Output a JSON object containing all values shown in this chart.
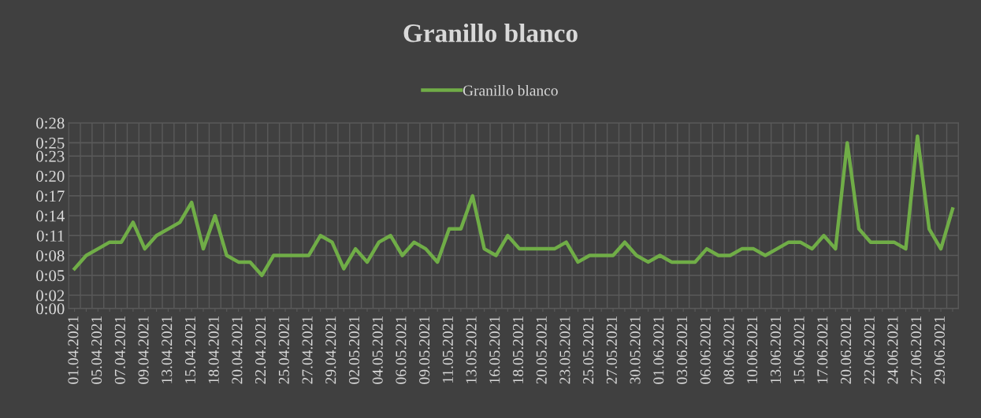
{
  "chart_data": {
    "type": "line",
    "title": "Granillo blanco",
    "categories": [
      "01.04.2021",
      null,
      "05.04.2021",
      null,
      "07.04.2021",
      null,
      "09.04.2021",
      null,
      "13.04.2021",
      null,
      "15.04.2021",
      null,
      "18.04.2021",
      null,
      "20.04.2021",
      null,
      "22.04.2021",
      null,
      "25.04.2021",
      null,
      "27.04.2021",
      null,
      "29.04.2021",
      null,
      "02.05.2021",
      null,
      "04.05.2021",
      null,
      "06.05.2021",
      null,
      "09.05.2021",
      null,
      "11.05.2021",
      null,
      "13.05.2021",
      null,
      "16.05.2021",
      null,
      "18.05.2021",
      null,
      "20.05.2021",
      null,
      "23.05.2021",
      null,
      "25.05.2021",
      null,
      "27.05.2021",
      null,
      "30.05.2021",
      null,
      "01.06.2021",
      null,
      "03.06.2021",
      null,
      "06.06.2021",
      null,
      "08.06.2021",
      null,
      "10.06.2021",
      null,
      "13.06.2021",
      null,
      "15.06.2021",
      null,
      "17.06.2021",
      null,
      "20.06.2021",
      null,
      "22.06.2021",
      null,
      "24.06.2021",
      null,
      "27.06.2021",
      null,
      "29.06.2021",
      null
    ],
    "series": [
      {
        "name": "Granillo blanco",
        "color": "#70ad47",
        "values": [
          6,
          8,
          9,
          10,
          10,
          13,
          9,
          11,
          12,
          13,
          16,
          9,
          14,
          8,
          7,
          7,
          5,
          8,
          8,
          8,
          8,
          11,
          10,
          6,
          9,
          7,
          10,
          11,
          8,
          10,
          9,
          7,
          12,
          12,
          17,
          9,
          8,
          11,
          9,
          9,
          9,
          9,
          10,
          7,
          8,
          8,
          8,
          10,
          8,
          7,
          8,
          7,
          7,
          7,
          9,
          8,
          8,
          9,
          9,
          8,
          9,
          10,
          10,
          9,
          11,
          9,
          25,
          12,
          10,
          10,
          10,
          9,
          26,
          12,
          9,
          15
        ]
      }
    ],
    "ylim": [
      0,
      28
    ],
    "yticks": [
      {
        "value": 0,
        "label": "0:00"
      },
      {
        "value": 2,
        "label": "0:02"
      },
      {
        "value": 5,
        "label": "0:05"
      },
      {
        "value": 8,
        "label": "0:08"
      },
      {
        "value": 11,
        "label": "0:11"
      },
      {
        "value": 14,
        "label": "0:14"
      },
      {
        "value": 17,
        "label": "0:17"
      },
      {
        "value": 20,
        "label": "0:20"
      },
      {
        "value": 23,
        "label": "0:23"
      },
      {
        "value": 25,
        "label": "0:25"
      },
      {
        "value": 28,
        "label": "0:28"
      }
    ],
    "grid": true,
    "legend": "top",
    "marker": "none",
    "line_style": "solid"
  }
}
